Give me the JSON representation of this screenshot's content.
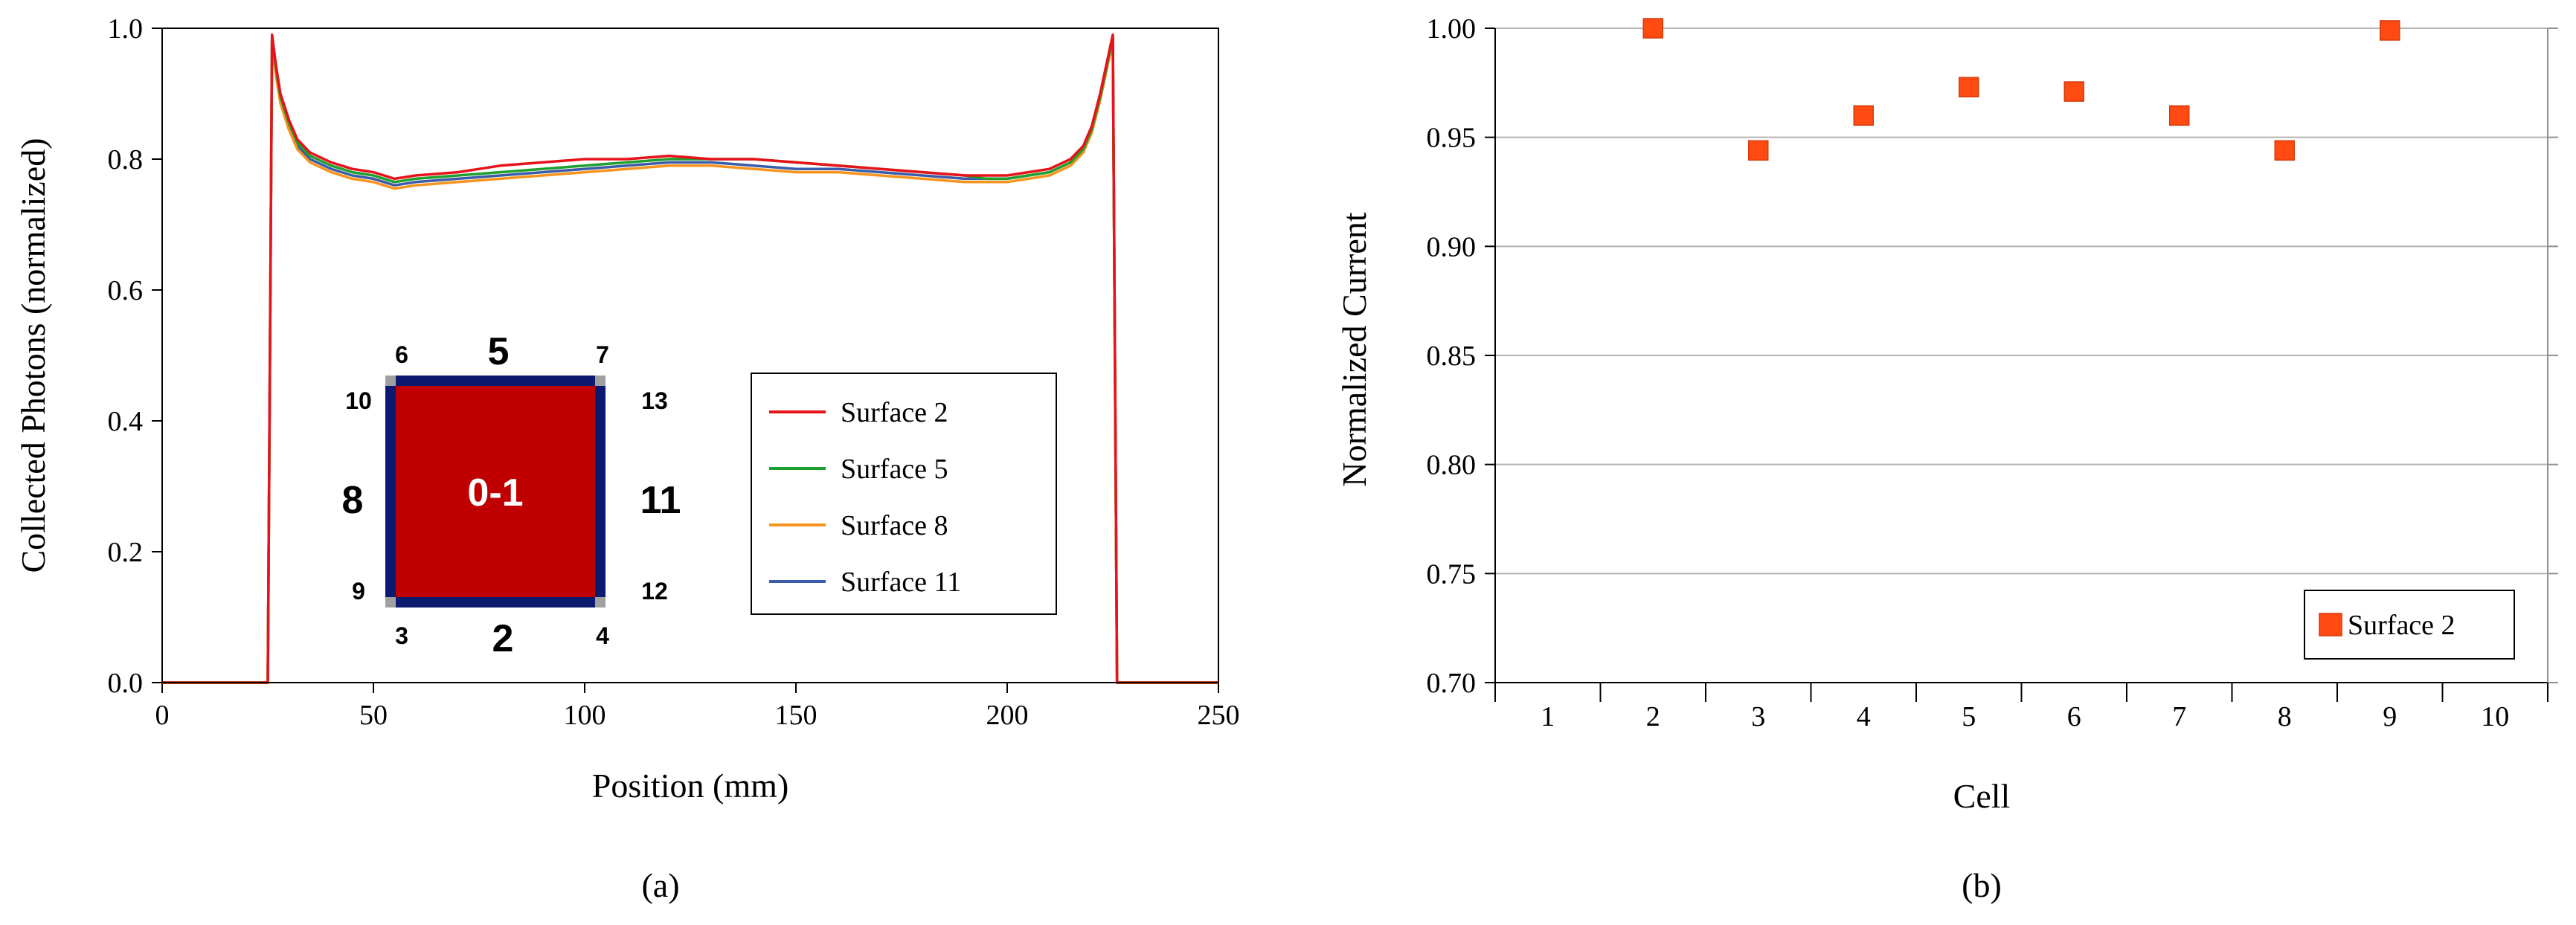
{
  "chart_data": [
    {
      "type": "line",
      "panel_label": "(a)",
      "xlabel": "Position (mm)",
      "ylabel": "Collected Photons (normalized)",
      "xlim": [
        0,
        250
      ],
      "ylim": [
        0.0,
        1.0
      ],
      "xticks": [
        0,
        50,
        100,
        150,
        200,
        250
      ],
      "xtick_labels": [
        "0",
        "50",
        "100",
        "150",
        "200",
        "250"
      ],
      "yticks": [
        0.0,
        0.2,
        0.4,
        0.6,
        0.8,
        1.0
      ],
      "ytick_labels": [
        "0.0",
        "0.2",
        "0.4",
        "0.6",
        "0.8",
        "1.0"
      ],
      "grid": false,
      "legend_position": "center-right",
      "x": [
        0,
        25,
        26,
        27,
        28,
        30,
        32,
        35,
        40,
        45,
        50,
        55,
        60,
        70,
        80,
        90,
        100,
        110,
        120,
        130,
        140,
        150,
        160,
        170,
        180,
        190,
        195,
        200,
        205,
        210,
        215,
        218,
        220,
        222,
        224,
        225,
        226,
        250
      ],
      "series": [
        {
          "name": "Surface 2",
          "color": "#e8121b",
          "values": [
            0,
            0,
            0.99,
            0.94,
            0.9,
            0.86,
            0.83,
            0.81,
            0.795,
            0.785,
            0.78,
            0.77,
            0.775,
            0.78,
            0.79,
            0.795,
            0.8,
            0.8,
            0.805,
            0.8,
            0.8,
            0.795,
            0.79,
            0.785,
            0.78,
            0.775,
            0.775,
            0.775,
            0.78,
            0.785,
            0.8,
            0.82,
            0.85,
            0.9,
            0.96,
            0.99,
            0,
            0
          ]
        },
        {
          "name": "Surface 5",
          "color": "#1fa02e",
          "values": [
            0,
            0,
            0.985,
            0.935,
            0.895,
            0.855,
            0.825,
            0.805,
            0.79,
            0.78,
            0.775,
            0.765,
            0.77,
            0.775,
            0.78,
            0.785,
            0.79,
            0.795,
            0.8,
            0.8,
            0.8,
            0.795,
            0.79,
            0.785,
            0.78,
            0.775,
            0.77,
            0.77,
            0.775,
            0.78,
            0.795,
            0.815,
            0.845,
            0.895,
            0.955,
            0.985,
            0,
            0
          ]
        },
        {
          "name": "Surface 8",
          "color": "#f7941d",
          "values": [
            0,
            0,
            0.98,
            0.925,
            0.885,
            0.845,
            0.815,
            0.795,
            0.78,
            0.77,
            0.765,
            0.755,
            0.76,
            0.765,
            0.77,
            0.775,
            0.78,
            0.785,
            0.79,
            0.79,
            0.785,
            0.78,
            0.78,
            0.775,
            0.77,
            0.765,
            0.765,
            0.765,
            0.77,
            0.775,
            0.79,
            0.81,
            0.84,
            0.89,
            0.95,
            0.98,
            0,
            0
          ]
        },
        {
          "name": "Surface 11",
          "color": "#3b5ca8",
          "values": [
            0,
            0,
            0.98,
            0.93,
            0.89,
            0.85,
            0.82,
            0.8,
            0.785,
            0.775,
            0.77,
            0.76,
            0.765,
            0.77,
            0.775,
            0.78,
            0.785,
            0.79,
            0.795,
            0.795,
            0.79,
            0.785,
            0.785,
            0.78,
            0.775,
            0.77,
            0.77,
            0.77,
            0.775,
            0.78,
            0.795,
            0.815,
            0.845,
            0.895,
            0.955,
            0.985,
            0,
            0
          ]
        }
      ],
      "inset": {
        "center_label": "0-1",
        "side_labels": {
          "top": "5",
          "bottom": "2",
          "left": "8",
          "right": "11"
        },
        "corner_labels": {
          "top_left_outer": "6",
          "top_left_inner": "10",
          "top_right_outer": "7",
          "top_right_inner": "13",
          "bottom_left_inner": "9",
          "bottom_left_outer": "3",
          "bottom_right_inner": "12",
          "bottom_right_outer": "4"
        },
        "fill_color": "#c00000",
        "edge_color": "#0b1a6e",
        "corner_color": "#a0a0a0"
      }
    },
    {
      "type": "scatter",
      "panel_label": "(b)",
      "xlabel": "Cell",
      "ylabel": "Normalized Current",
      "xlim": [
        0.5,
        10.5
      ],
      "ylim": [
        0.7,
        1.0
      ],
      "xticks": [
        1,
        2,
        3,
        4,
        5,
        6,
        7,
        8,
        9,
        10
      ],
      "xtick_labels": [
        "1",
        "2",
        "3",
        "4",
        "5",
        "6",
        "7",
        "8",
        "9",
        "10"
      ],
      "yticks": [
        0.7,
        0.75,
        0.8,
        0.85,
        0.9,
        0.95,
        1.0
      ],
      "ytick_labels": [
        "0.70",
        "0.75",
        "0.80",
        "0.85",
        "0.90",
        "0.95",
        "1.00"
      ],
      "grid": true,
      "legend_position": "bottom-right",
      "series": [
        {
          "name": "Surface 2",
          "color": "#ff4a12",
          "marker": "square",
          "x": [
            2,
            3,
            4,
            5,
            6,
            7,
            8,
            9
          ],
          "values": [
            1.0,
            0.944,
            0.96,
            0.973,
            0.971,
            0.96,
            0.944,
            0.999
          ]
        }
      ]
    }
  ]
}
